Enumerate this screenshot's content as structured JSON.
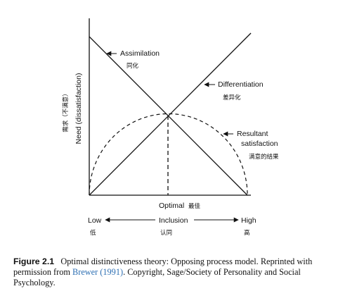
{
  "diagram": {
    "y_axis_label": "Need (dissatisfaction)",
    "y_axis_label_cn": "需求（不满意）",
    "lines": {
      "assimilation": {
        "label": "Assimilation",
        "label_cn": "同化"
      },
      "differentiation": {
        "label": "Differentiation",
        "label_cn": "差异化"
      },
      "resultant": {
        "label_line1": "Resultant",
        "label_line2": "satisfaction",
        "label_cn": "满意的结果"
      }
    },
    "optimal": {
      "label": "Optimal",
      "label_cn": "最佳"
    },
    "inclusion_axis": {
      "low": "Low",
      "low_cn": "低",
      "middle": "Inclusion",
      "middle_cn": "认同",
      "high": "High",
      "high_cn": "高"
    }
  },
  "caption": {
    "figure_number": "Figure 2.1",
    "text_before_citation": "Optimal distinctiveness theory: Opposing process model. Reprinted with permission from ",
    "citation": "Brewer (1991)",
    "text_after_citation": ". Copyright, Sage/Society of Personality and Social Psychology."
  }
}
